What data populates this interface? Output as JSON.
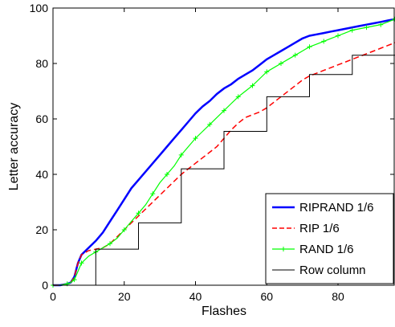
{
  "chart_data": {
    "type": "line",
    "xlabel": "Flashes",
    "ylabel": "Letter accuracy",
    "xlim": [
      0,
      96
    ],
    "ylim": [
      0,
      100
    ],
    "x_ticks": [
      0,
      20,
      40,
      60,
      80
    ],
    "y_ticks": [
      0,
      20,
      40,
      60,
      80,
      100
    ],
    "grid": false,
    "legend_position": "bottom-right",
    "series": [
      {
        "name": "RIPRAND 1/6",
        "color": "#0000ff",
        "style": "solid",
        "x": [
          0,
          2,
          4,
          5,
          6,
          7,
          8,
          10,
          12,
          14,
          16,
          18,
          20,
          22,
          24,
          26,
          28,
          30,
          32,
          34,
          36,
          38,
          40,
          42,
          44,
          46,
          48,
          50,
          52,
          54,
          56,
          58,
          60,
          62,
          64,
          66,
          68,
          70,
          72,
          74,
          76,
          78,
          80,
          82,
          84,
          86,
          88,
          90,
          92,
          94,
          96
        ],
        "y": [
          0,
          0,
          0.5,
          1,
          3,
          8,
          11,
          13.5,
          16,
          19,
          23,
          27,
          31,
          35,
          38,
          41,
          44,
          47,
          50,
          53,
          56,
          59,
          62,
          64.5,
          66.5,
          69,
          71,
          72.5,
          74.5,
          76,
          77.5,
          79.5,
          81.5,
          83,
          84.5,
          86,
          87.5,
          89,
          90,
          90.5,
          91,
          91.5,
          92,
          92.5,
          93,
          93.5,
          94,
          94.5,
          95,
          95.5,
          96
        ]
      },
      {
        "name": "RIP 1/6",
        "color": "#ff0000",
        "style": "dashed",
        "x": [
          0,
          2,
          4,
          5,
          6,
          7,
          8,
          10,
          12,
          14,
          16,
          18,
          20,
          22,
          24,
          26,
          28,
          30,
          32,
          34,
          36,
          38,
          40,
          42,
          44,
          46,
          48,
          50,
          52,
          54,
          56,
          58,
          60,
          62,
          64,
          66,
          68,
          70,
          72,
          74,
          76,
          78,
          80,
          82,
          84,
          86,
          88,
          90,
          92,
          94,
          96
        ],
        "y": [
          0,
          0,
          0.5,
          1,
          3,
          8,
          11,
          12.5,
          13,
          13.5,
          15,
          17.5,
          20,
          22.5,
          25,
          27.5,
          30,
          32.5,
          35,
          37.5,
          40,
          42,
          44,
          46,
          48,
          50,
          53,
          56,
          58.5,
          60.5,
          61.5,
          62.5,
          64,
          66,
          68,
          70,
          72,
          74,
          75.5,
          76.5,
          77.5,
          78.5,
          79.5,
          80.5,
          81.5,
          82.5,
          83.5,
          84.5,
          85.5,
          86.5,
          87.5
        ]
      },
      {
        "name": "RAND 1/6",
        "color": "#00ff00",
        "style": "solid-plus",
        "x": [
          0,
          2,
          4,
          5,
          6,
          7,
          8,
          10,
          12,
          14,
          16,
          18,
          20,
          22,
          24,
          26,
          28,
          30,
          32,
          34,
          36,
          38,
          40,
          42,
          44,
          46,
          48,
          50,
          52,
          54,
          56,
          58,
          60,
          62,
          64,
          66,
          68,
          70,
          72,
          74,
          76,
          78,
          80,
          82,
          84,
          86,
          88,
          90,
          92,
          94,
          96
        ],
        "y": [
          0,
          0,
          0.5,
          1,
          2,
          5,
          8,
          10.5,
          12,
          13.5,
          15,
          17,
          20,
          23,
          26,
          29,
          33,
          37,
          40,
          43,
          47,
          50,
          53,
          55.5,
          58,
          60.5,
          63,
          65.5,
          68,
          70,
          72,
          74.5,
          77,
          78.5,
          80,
          81.5,
          83,
          84.5,
          86,
          87,
          88,
          89,
          90,
          91,
          92,
          92.5,
          93,
          93.5,
          94,
          95,
          96
        ]
      },
      {
        "name": "Row column",
        "color": "#000000",
        "style": "step",
        "x": [
          0,
          12,
          12,
          24,
          24,
          36,
          36,
          48,
          48,
          60,
          60,
          72,
          72,
          84,
          84,
          96
        ],
        "y": [
          0,
          0,
          13,
          13,
          22.5,
          22.5,
          42,
          42,
          55.5,
          55.5,
          68,
          68,
          76,
          76,
          83,
          83
        ]
      }
    ]
  }
}
